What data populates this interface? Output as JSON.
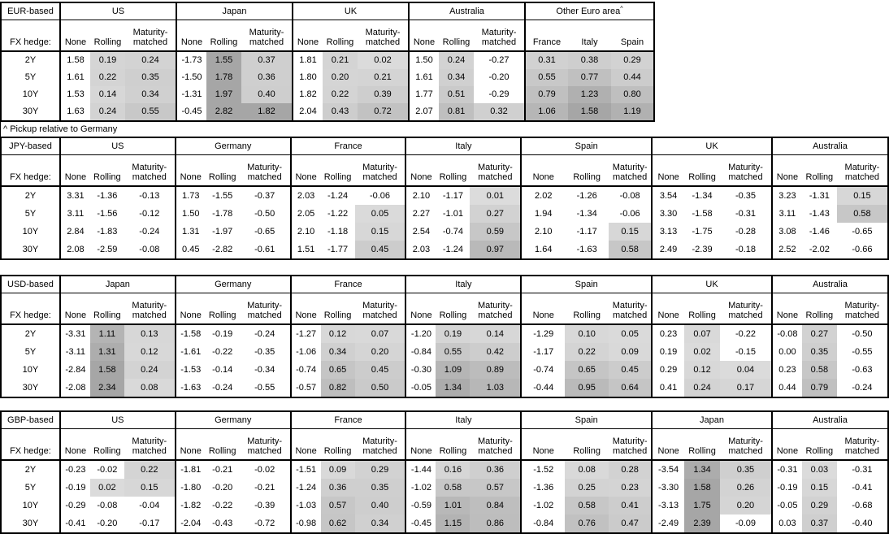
{
  "fx_hedge_label": "FX hedge:",
  "row_labels": [
    "2Y",
    "5Y",
    "10Y",
    "30Y"
  ],
  "colors": {
    "background": "#ffffff",
    "border": "#000000",
    "shade_min": "#dcdcdc",
    "shade_max": "#a6a6a6"
  },
  "tables": [
    {
      "base": "EUR-based",
      "note": "^ Pickup relative to Germany",
      "groups": [
        {
          "name": "US",
          "cols": [
            "None",
            "Rolling",
            "Maturity-matched"
          ],
          "pickup": false,
          "rows": [
            [
              "1.58",
              "0.19",
              "0.24"
            ],
            [
              "1.61",
              "0.22",
              "0.35"
            ],
            [
              "1.53",
              "0.14",
              "0.34"
            ],
            [
              "1.63",
              "0.24",
              "0.55"
            ]
          ]
        },
        {
          "name": "Japan",
          "cols": [
            "None",
            "Rolling",
            "Maturity-matched"
          ],
          "pickup": false,
          "rows": [
            [
              "-1.73",
              "1.55",
              "0.37"
            ],
            [
              "-1.50",
              "1.78",
              "0.36"
            ],
            [
              "-1.31",
              "1.97",
              "0.40"
            ],
            [
              "-0.45",
              "2.82",
              "1.82"
            ]
          ]
        },
        {
          "name": "UK",
          "cols": [
            "None",
            "Rolling",
            "Maturity-matched"
          ],
          "pickup": false,
          "rows": [
            [
              "1.81",
              "0.21",
              "0.02"
            ],
            [
              "1.80",
              "0.20",
              "0.21"
            ],
            [
              "1.82",
              "0.22",
              "0.39"
            ],
            [
              "2.04",
              "0.43",
              "0.72"
            ]
          ]
        },
        {
          "name": "Australia",
          "cols": [
            "None",
            "Rolling",
            "Maturity-matched"
          ],
          "pickup": false,
          "rows": [
            [
              "1.50",
              "0.24",
              "-0.27"
            ],
            [
              "1.61",
              "0.34",
              "-0.20"
            ],
            [
              "1.77",
              "0.51",
              "-0.29"
            ],
            [
              "2.07",
              "0.81",
              "0.32"
            ]
          ]
        },
        {
          "name": "Other Euro area",
          "sup": "^",
          "cols": [
            "France",
            "Italy",
            "Spain"
          ],
          "pickup": true,
          "rows": [
            [
              "0.31",
              "0.38",
              "0.29"
            ],
            [
              "0.55",
              "0.77",
              "0.44"
            ],
            [
              "0.79",
              "1.23",
              "0.80"
            ],
            [
              "1.06",
              "1.58",
              "1.19"
            ]
          ]
        }
      ]
    },
    {
      "base": "JPY-based",
      "groups": [
        {
          "name": "US",
          "cols": [
            "None",
            "Rolling",
            "Maturity-matched"
          ],
          "pickup": false,
          "rows": [
            [
              "3.31",
              "-1.36",
              "-0.13"
            ],
            [
              "3.11",
              "-1.56",
              "-0.12"
            ],
            [
              "2.84",
              "-1.83",
              "-0.24"
            ],
            [
              "2.08",
              "-2.59",
              "-0.08"
            ]
          ]
        },
        {
          "name": "Germany",
          "cols": [
            "None",
            "Rolling",
            "Maturity-matched"
          ],
          "pickup": false,
          "rows": [
            [
              "1.73",
              "-1.55",
              "-0.37"
            ],
            [
              "1.50",
              "-1.78",
              "-0.50"
            ],
            [
              "1.31",
              "-1.97",
              "-0.65"
            ],
            [
              "0.45",
              "-2.82",
              "-0.61"
            ]
          ]
        },
        {
          "name": "France",
          "cols": [
            "None",
            "Rolling",
            "Maturity-matched"
          ],
          "pickup": false,
          "rows": [
            [
              "2.03",
              "-1.24",
              "-0.06"
            ],
            [
              "2.05",
              "-1.22",
              "0.05"
            ],
            [
              "2.10",
              "-1.18",
              "0.15"
            ],
            [
              "1.51",
              "-1.77",
              "0.45"
            ]
          ]
        },
        {
          "name": "Italy",
          "cols": [
            "None",
            "Rolling",
            "Maturity-matched"
          ],
          "pickup": false,
          "rows": [
            [
              "2.10",
              "-1.17",
              "0.01"
            ],
            [
              "2.27",
              "-1.01",
              "0.27"
            ],
            [
              "2.54",
              "-0.74",
              "0.59"
            ],
            [
              "2.03",
              "-1.24",
              "0.97"
            ]
          ]
        },
        {
          "name": "Spain",
          "cols": [
            "None",
            "Rolling",
            "Maturity-matched"
          ],
          "pickup": false,
          "rows": [
            [
              "2.02",
              "-1.26",
              "-0.08"
            ],
            [
              "1.94",
              "-1.34",
              "-0.06"
            ],
            [
              "2.10",
              "-1.17",
              "0.15"
            ],
            [
              "1.64",
              "-1.63",
              "0.58"
            ]
          ]
        },
        {
          "name": "UK",
          "cols": [
            "None",
            "Rolling",
            "Maturity-matched"
          ],
          "pickup": false,
          "rows": [
            [
              "3.54",
              "-1.34",
              "-0.35"
            ],
            [
              "3.30",
              "-1.58",
              "-0.31"
            ],
            [
              "3.13",
              "-1.75",
              "-0.28"
            ],
            [
              "2.49",
              "-2.39",
              "-0.18"
            ]
          ]
        },
        {
          "name": "Australia",
          "cols": [
            "None",
            "Rolling",
            "Maturity-matched"
          ],
          "pickup": false,
          "rows": [
            [
              "3.23",
              "-1.31",
              "0.15"
            ],
            [
              "3.11",
              "-1.43",
              "0.58"
            ],
            [
              "3.08",
              "-1.46",
              "-0.65"
            ],
            [
              "2.52",
              "-2.02",
              "-0.66"
            ]
          ]
        }
      ]
    },
    {
      "base": "USD-based",
      "groups": [
        {
          "name": "Japan",
          "cols": [
            "None",
            "Rolling",
            "Maturity-matched"
          ],
          "pickup": false,
          "rows": [
            [
              "-3.31",
              "1.11",
              "0.13"
            ],
            [
              "-3.11",
              "1.31",
              "0.12"
            ],
            [
              "-2.84",
              "1.58",
              "0.24"
            ],
            [
              "-2.08",
              "2.34",
              "0.08"
            ]
          ]
        },
        {
          "name": "Germany",
          "cols": [
            "None",
            "Rolling",
            "Maturity-matched"
          ],
          "pickup": false,
          "rows": [
            [
              "-1.58",
              "-0.19",
              "-0.24"
            ],
            [
              "-1.61",
              "-0.22",
              "-0.35"
            ],
            [
              "-1.53",
              "-0.14",
              "-0.34"
            ],
            [
              "-1.63",
              "-0.24",
              "-0.55"
            ]
          ]
        },
        {
          "name": "France",
          "cols": [
            "None",
            "Rolling",
            "Maturity-matched"
          ],
          "pickup": false,
          "rows": [
            [
              "-1.27",
              "0.12",
              "0.07"
            ],
            [
              "-1.06",
              "0.34",
              "0.20"
            ],
            [
              "-0.74",
              "0.65",
              "0.45"
            ],
            [
              "-0.57",
              "0.82",
              "0.50"
            ]
          ]
        },
        {
          "name": "Italy",
          "cols": [
            "None",
            "Rolling",
            "Maturity-matched"
          ],
          "pickup": false,
          "rows": [
            [
              "-1.20",
              "0.19",
              "0.14"
            ],
            [
              "-0.84",
              "0.55",
              "0.42"
            ],
            [
              "-0.30",
              "1.09",
              "0.89"
            ],
            [
              "-0.05",
              "1.34",
              "1.03"
            ]
          ]
        },
        {
          "name": "Spain",
          "cols": [
            "None",
            "Rolling",
            "Maturity-matched"
          ],
          "pickup": false,
          "rows": [
            [
              "-1.29",
              "0.10",
              "0.05"
            ],
            [
              "-1.17",
              "0.22",
              "0.09"
            ],
            [
              "-0.74",
              "0.65",
              "0.45"
            ],
            [
              "-0.44",
              "0.95",
              "0.64"
            ]
          ]
        },
        {
          "name": "UK",
          "cols": [
            "None",
            "Rolling",
            "Maturity-matched"
          ],
          "pickup": false,
          "rows": [
            [
              "0.23",
              "0.07",
              "-0.22"
            ],
            [
              "0.19",
              "0.02",
              "-0.15"
            ],
            [
              "0.29",
              "0.12",
              "0.04"
            ],
            [
              "0.41",
              "0.24",
              "0.17"
            ]
          ]
        },
        {
          "name": "Australia",
          "cols": [
            "None",
            "Rolling",
            "Maturity-matched"
          ],
          "pickup": false,
          "rows": [
            [
              "-0.08",
              "0.27",
              "-0.50"
            ],
            [
              "0.00",
              "0.35",
              "-0.55"
            ],
            [
              "0.23",
              "0.58",
              "-0.63"
            ],
            [
              "0.44",
              "0.79",
              "-0.24"
            ]
          ]
        }
      ]
    },
    {
      "base": "GBP-based",
      "groups": [
        {
          "name": "US",
          "cols": [
            "None",
            "Rolling",
            "Maturity-matched"
          ],
          "pickup": false,
          "rows": [
            [
              "-0.23",
              "-0.02",
              "0.22"
            ],
            [
              "-0.19",
              "0.02",
              "0.15"
            ],
            [
              "-0.29",
              "-0.08",
              "-0.04"
            ],
            [
              "-0.41",
              "-0.20",
              "-0.17"
            ]
          ]
        },
        {
          "name": "Germany",
          "cols": [
            "None",
            "Rolling",
            "Maturity-matched"
          ],
          "pickup": false,
          "rows": [
            [
              "-1.81",
              "-0.21",
              "-0.02"
            ],
            [
              "-1.80",
              "-0.20",
              "-0.21"
            ],
            [
              "-1.82",
              "-0.22",
              "-0.39"
            ],
            [
              "-2.04",
              "-0.43",
              "-0.72"
            ]
          ]
        },
        {
          "name": "France",
          "cols": [
            "None",
            "Rolling",
            "Maturity-matched"
          ],
          "pickup": false,
          "rows": [
            [
              "-1.51",
              "0.09",
              "0.29"
            ],
            [
              "-1.24",
              "0.36",
              "0.35"
            ],
            [
              "-1.03",
              "0.57",
              "0.40"
            ],
            [
              "-0.98",
              "0.62",
              "0.34"
            ]
          ]
        },
        {
          "name": "Italy",
          "cols": [
            "None",
            "Rolling",
            "Maturity-matched"
          ],
          "pickup": false,
          "rows": [
            [
              "-1.44",
              "0.16",
              "0.36"
            ],
            [
              "-1.02",
              "0.58",
              "0.57"
            ],
            [
              "-0.59",
              "1.01",
              "0.84"
            ],
            [
              "-0.45",
              "1.15",
              "0.86"
            ]
          ]
        },
        {
          "name": "Spain",
          "cols": [
            "None",
            "Rolling",
            "Maturity-matched"
          ],
          "pickup": false,
          "rows": [
            [
              "-1.52",
              "0.08",
              "0.28"
            ],
            [
              "-1.36",
              "0.25",
              "0.23"
            ],
            [
              "-1.02",
              "0.58",
              "0.41"
            ],
            [
              "-0.84",
              "0.76",
              "0.47"
            ]
          ]
        },
        {
          "name": "Japan",
          "cols": [
            "None",
            "Rolling",
            "Maturity-matched"
          ],
          "pickup": false,
          "rows": [
            [
              "-3.54",
              "1.34",
              "0.35"
            ],
            [
              "-3.30",
              "1.58",
              "0.26"
            ],
            [
              "-3.13",
              "1.75",
              "0.20"
            ],
            [
              "-2.49",
              "2.39",
              "-0.09"
            ]
          ]
        },
        {
          "name": "Australia",
          "cols": [
            "None",
            "Rolling",
            "Maturity-matched"
          ],
          "pickup": false,
          "rows": [
            [
              "-0.31",
              "0.03",
              "-0.31"
            ],
            [
              "-0.19",
              "0.15",
              "-0.41"
            ],
            [
              "-0.05",
              "0.29",
              "-0.68"
            ],
            [
              "0.03",
              "0.37",
              "-0.40"
            ]
          ]
        }
      ]
    }
  ]
}
